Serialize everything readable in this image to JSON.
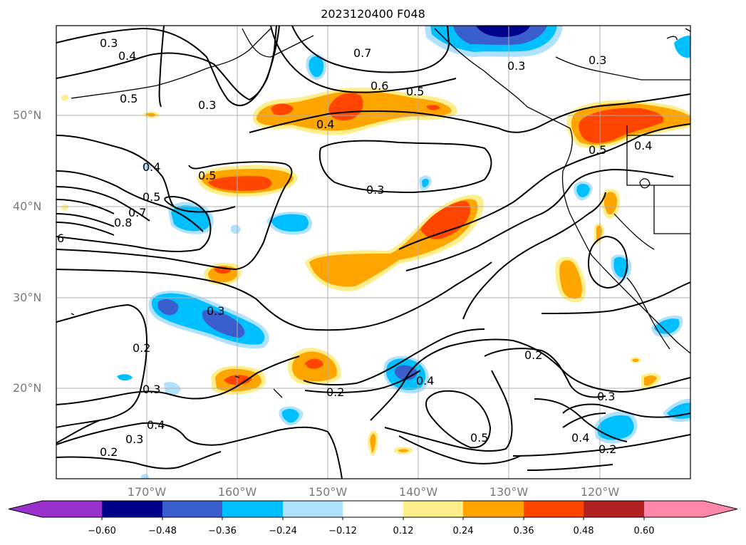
{
  "title": "2023120400 F048",
  "lat_labels": [
    "50°N",
    "40°N",
    "30°N",
    "20°N"
  ],
  "lon_labels": [
    "170°W",
    "160°W",
    "150°W",
    "140°W",
    "130°W",
    "120°W"
  ],
  "colorbar": {
    "ticks": [
      "−0.60",
      "−0.48",
      "−0.36",
      "−0.24",
      "−0.12",
      "0.12",
      "0.24",
      "0.36",
      "0.48",
      "0.60"
    ],
    "colors": [
      "#9932cc",
      "#00008b",
      "#3a5fcd",
      "#00bfff",
      "#b0e2ff",
      "#ffffff",
      "#ffee8c",
      "#ffa500",
      "#ff4500",
      "#b22222",
      "#ff88aa"
    ]
  },
  "contour_labels": [
    "0.3",
    "0.4",
    "0.5",
    "0.3",
    "0.7",
    "0.6",
    "0.5",
    "0.3",
    "0.3",
    "0.4",
    "0.5",
    "0.4",
    "0.5",
    "0.5",
    "0.3",
    "0.7",
    "0.8",
    "6",
    "0.4",
    "0.3",
    "0.2",
    "0.3",
    "0.4",
    "0.3",
    "0.2",
    "0.2",
    "0.4",
    "0.2",
    "0.5",
    "0.3",
    "0.4",
    "0.2"
  ],
  "colors": {
    "land": "#000000",
    "contour": "#000000",
    "grid": "#b0b0b0",
    "tick_label": "#7a7a7a"
  }
}
